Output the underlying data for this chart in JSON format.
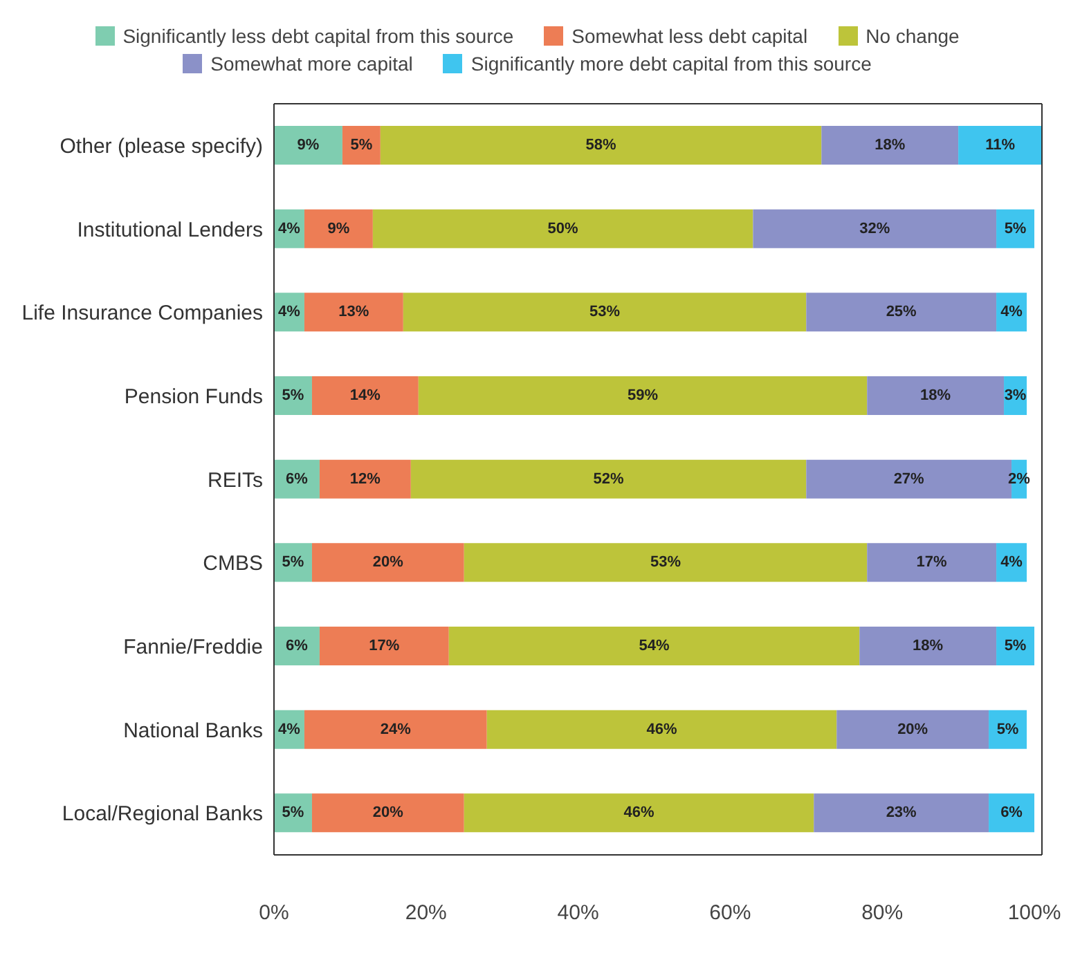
{
  "chart_data": {
    "type": "bar",
    "orientation": "horizontal",
    "stacked": true,
    "categories": [
      "Other (please specify)",
      "Institutional Lenders",
      "Life Insurance Companies",
      "Pension Funds",
      "REITs",
      "CMBS",
      "Fannie/Freddie",
      "National Banks",
      "Local/Regional Banks"
    ],
    "series": [
      {
        "name": "Significantly less debt capital from this source",
        "color": "#7fcdb0",
        "values": [
          9,
          4,
          4,
          5,
          6,
          5,
          6,
          4,
          5
        ],
        "value_labels": [
          "9%",
          "4%",
          "4%",
          "5%",
          "6%",
          "5%",
          "6%",
          "4%",
          "5%"
        ]
      },
      {
        "name": "Somewhat less debt capital",
        "color": "#ed7d55",
        "values": [
          5,
          9,
          13,
          14,
          12,
          20,
          17,
          24,
          20
        ],
        "value_labels": [
          "5%",
          "9%",
          "13%",
          "14%",
          "12%",
          "20%",
          "17%",
          "24%",
          "20%"
        ]
      },
      {
        "name": "No change",
        "color": "#bdc43a",
        "values": [
          58,
          50,
          53,
          59,
          52,
          53,
          54,
          46,
          46
        ],
        "value_labels": [
          "58%",
          "50%",
          "53%",
          "59%",
          "52%",
          "53%",
          "54%",
          "46%",
          "46%"
        ]
      },
      {
        "name": "Somewhat more capital",
        "color": "#8b91c8",
        "values": [
          18,
          32,
          25,
          18,
          27,
          17,
          18,
          20,
          23
        ],
        "value_labels": [
          "18%",
          "32%",
          "25%",
          "18%",
          "27%",
          "17%",
          "18%",
          "20%",
          "23%"
        ]
      },
      {
        "name": "Significantly more debt capital from this source",
        "color": "#3fc5ef",
        "values": [
          11,
          5,
          4,
          3,
          2,
          4,
          5,
          5,
          6
        ],
        "value_labels": [
          "11%",
          "5%",
          "4%",
          "3%",
          "2%",
          "4%",
          "5%",
          "5%",
          "6%"
        ]
      }
    ],
    "xlim": [
      0,
      101
    ],
    "xticks": [
      {
        "value": 0,
        "label": "0%"
      },
      {
        "value": 20,
        "label": "20%"
      },
      {
        "value": 40,
        "label": "40%"
      },
      {
        "value": 60,
        "label": "60%"
      },
      {
        "value": 80,
        "label": "80%"
      },
      {
        "value": 100,
        "label": "100%"
      }
    ],
    "legend": "top"
  }
}
